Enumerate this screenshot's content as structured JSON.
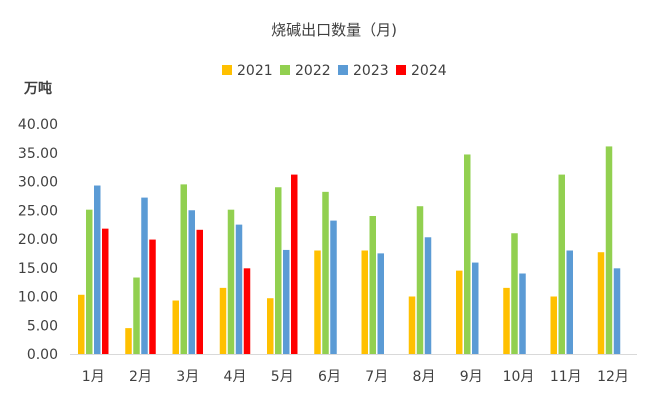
{
  "chart_data": {
    "type": "bar",
    "title": "烧碱出口数量（月)",
    "ylabel": "万吨",
    "xlabel": "",
    "categories": [
      "1月",
      "2月",
      "3月",
      "4月",
      "5月",
      "6月",
      "7月",
      "8月",
      "9月",
      "10月",
      "11月",
      "12月"
    ],
    "ylim": [
      0,
      40
    ],
    "yticks": [
      "0.00",
      "5.00",
      "10.00",
      "15.00",
      "20.00",
      "25.00",
      "30.00",
      "35.00",
      "40.00"
    ],
    "grid": false,
    "legend_position": "top",
    "series": [
      {
        "name": "2021",
        "color": "#ffc000",
        "values": [
          10.3,
          4.5,
          9.3,
          11.5,
          9.7,
          18.0,
          18.0,
          10.0,
          14.5,
          11.5,
          10.0,
          17.7
        ]
      },
      {
        "name": "2022",
        "color": "#92d050",
        "values": [
          25.1,
          13.3,
          29.5,
          25.1,
          29.0,
          28.2,
          24.0,
          25.7,
          34.7,
          21.0,
          31.2,
          36.1
        ]
      },
      {
        "name": "2023",
        "color": "#5b9bd5",
        "values": [
          29.3,
          27.2,
          25.0,
          22.5,
          18.1,
          23.2,
          17.5,
          20.3,
          15.9,
          14.0,
          18.0,
          14.9
        ]
      },
      {
        "name": "2024",
        "color": "#ff0000",
        "values": [
          21.8,
          19.9,
          21.6,
          14.9,
          31.2,
          null,
          null,
          null,
          null,
          null,
          null,
          null
        ]
      }
    ]
  }
}
